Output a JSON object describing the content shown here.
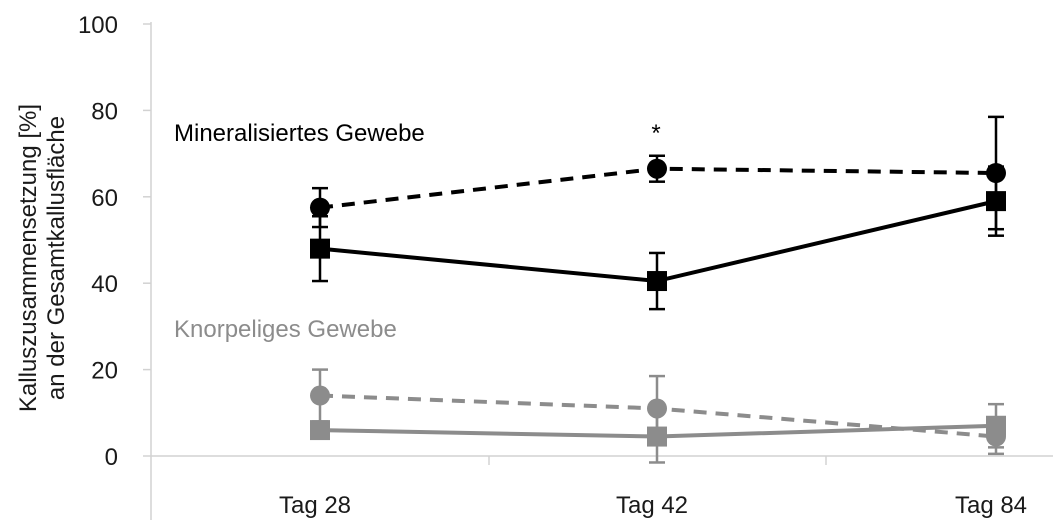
{
  "chart_data": {
    "type": "line",
    "categories": [
      "Tag 28",
      "Tag 42",
      "Tag 84"
    ],
    "ylim": [
      0,
      100
    ],
    "yticks": [
      "100",
      "80",
      "60",
      "40",
      "20",
      "0"
    ],
    "ylabel_lines": [
      "Kalluszusammensetzung [%]",
      "an der Gesamtkallusfläche"
    ],
    "grid": false,
    "series": [
      {
        "marker": "circle",
        "line": "dashed",
        "color": "#000000",
        "values": [
          57.5,
          66.5,
          65.5
        ],
        "err": [
          4.5,
          3,
          13
        ]
      },
      {
        "marker": "square",
        "line": "solid",
        "color": "#000000",
        "values": [
          48,
          40.5,
          59
        ],
        "err": [
          7.5,
          6.5,
          8
        ]
      },
      {
        "marker": "circle",
        "line": "dashed",
        "color": "#8c8c8c",
        "values": [
          14,
          11,
          4.5
        ],
        "err": [
          6,
          7.5,
          4
        ]
      },
      {
        "marker": "square",
        "line": "solid",
        "color": "#8c8c8c",
        "values": [
          6,
          4.5,
          7
        ],
        "err": [
          0.5,
          6,
          5
        ]
      }
    ],
    "annotations": [
      {
        "text": "Mineralisiertes Gewebe",
        "color": "#000000"
      },
      {
        "text": "*",
        "color": "#000000"
      },
      {
        "text": "Knorpeliges Gewebe",
        "color": "#8c8c8c"
      }
    ]
  }
}
